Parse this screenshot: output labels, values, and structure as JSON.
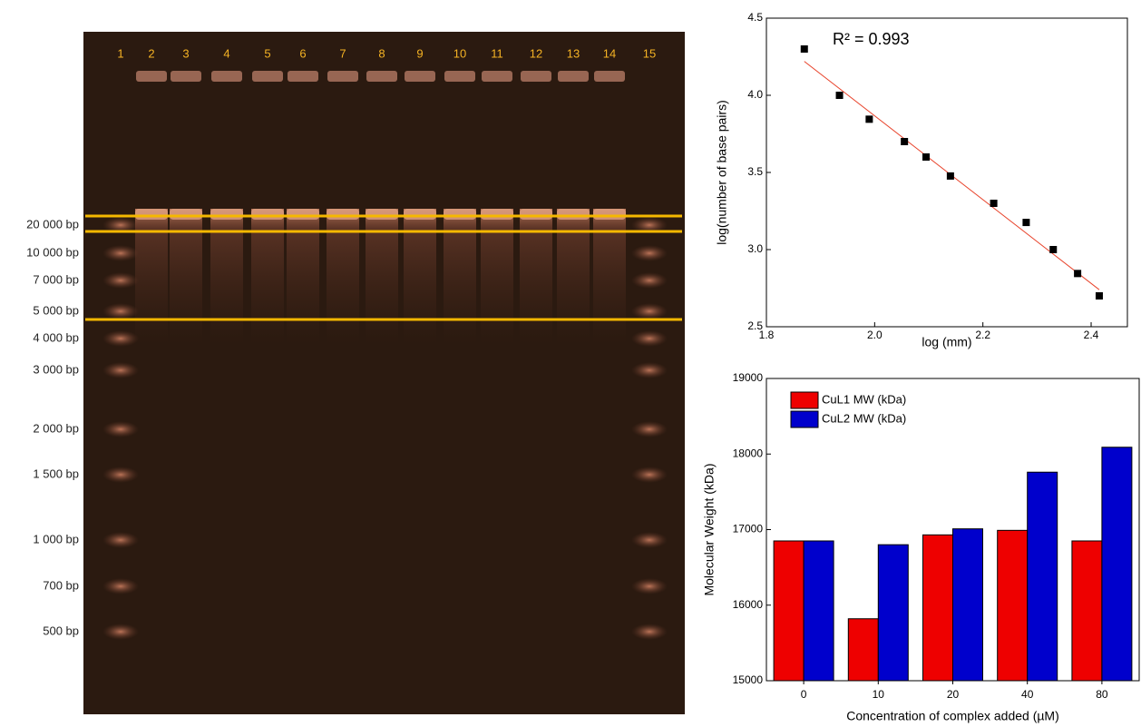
{
  "gel": {
    "lanes": [
      "1",
      "2",
      "3",
      "4",
      "5",
      "6",
      "7",
      "8",
      "9",
      "10",
      "11",
      "12",
      "13",
      "14",
      "15"
    ],
    "markers": [
      "20 000 bp",
      "10 000 bp",
      "7 000 bp",
      "5 000 bp",
      "4 000 bp",
      "3 000 bp",
      "2 000 bp",
      "1 500 bp",
      "1 000 bp",
      "700 bp",
      "500 bp"
    ]
  },
  "chart_data": [
    {
      "type": "scatter",
      "x_label": "log (mm)",
      "y_label": "log(number of base pairs)",
      "annotation": "R² = 0.993",
      "x": [
        1.87,
        1.935,
        1.99,
        2.055,
        2.095,
        2.14,
        2.22,
        2.28,
        2.33,
        2.375,
        2.415
      ],
      "values": [
        4.3,
        4.0,
        3.845,
        3.7,
        3.6,
        3.477,
        3.3,
        3.176,
        3.0,
        2.845,
        2.7
      ],
      "color": "#000000",
      "fit": {
        "x": [
          1.87,
          2.415
        ],
        "values": [
          4.22,
          2.74
        ],
        "color": "#e8442c"
      },
      "xlim": [
        1.8,
        2.467
      ],
      "ylim": [
        2.5,
        4.5
      ],
      "xticks": [
        1.8,
        {
          "value": 2,
          "label": "2.0"
        },
        2.2,
        2.4
      ],
      "yticks": [
        2.5,
        {
          "value": 3,
          "label": "3.0"
        },
        3.5,
        {
          "value": 4,
          "label": "4.0"
        },
        4.5
      ]
    },
    {
      "type": "bar",
      "x_label": "Concentration of complex added (µM)",
      "y_label": "Molecular Weight (kDa)",
      "categories": [
        "0",
        "10",
        "20",
        "40",
        "80"
      ],
      "series": [
        {
          "name": "CuL1 MW (kDa)",
          "color": "#ee0000",
          "values": [
            16850,
            15820,
            16930,
            16990,
            16850
          ]
        },
        {
          "name": "CuL2 MW (kDa)",
          "color": "#0000cc",
          "values": [
            16850,
            16800,
            17010,
            17760,
            18090
          ]
        }
      ],
      "ylim": [
        15000,
        19000
      ],
      "yticks": [
        15000,
        16000,
        17000,
        18000,
        19000
      ],
      "legend": "top-left"
    }
  ]
}
